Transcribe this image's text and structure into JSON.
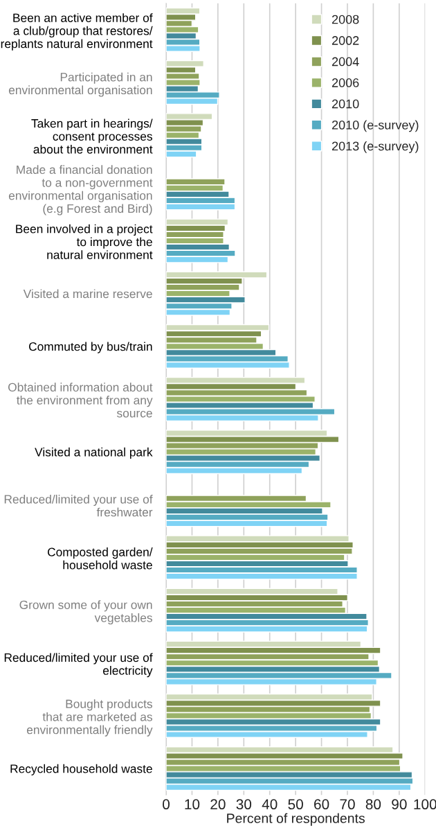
{
  "chart_data": {
    "type": "bar",
    "orientation": "horizontal",
    "xlabel": "Percent of respondents",
    "categories": [
      "Been an active member of\na club/group that restores/\nreplants natural environment",
      "Participated in an\nenvironmental organisation",
      "Taken part in hearings/\nconsent processes\nabout the environment",
      "Made a financial donation\nto a non-government\nenvironmental organisation\n(e.g Forest and Bird)",
      "Been involved in a project\nto improve the\nnatural environment",
      "Visited a marine reserve",
      "Commuted by bus/train",
      "Obtained information about\nthe environment from any\nsource",
      "Visited a national park",
      "Reduced/limited your use of\nfreshwater",
      "Composted garden/\nhousehold waste",
      "Grown some of your own\nvegetables",
      "Reduced/limited your use of\nelectricity",
      "Bought products\nthat are marketed as\nenvironmentally friendly",
      "Recycled household waste"
    ],
    "series": [
      {
        "name": "2008",
        "color": "#d0dbbb",
        "values": [
          13.0,
          14.5,
          17.8,
          null,
          23.9,
          38.9,
          39.7,
          53.6,
          62.2,
          null,
          70.6,
          66.3,
          75.2,
          79.6,
          87.6
        ]
      },
      {
        "name": "2002",
        "color": "#7f914e",
        "values": [
          11.4,
          11.4,
          14.3,
          null,
          22.8,
          29.4,
          36.8,
          50.1,
          66.7,
          null,
          72.2,
          70.1,
          82.8,
          82.8,
          91.4
        ]
      },
      {
        "name": "2004",
        "color": "#8fa25b",
        "values": [
          10.0,
          12.8,
          13.6,
          22.7,
          22.2,
          28.3,
          35.0,
          54.4,
          58.7,
          54.1,
          71.9,
          68.2,
          78.3,
          78.7,
          90.2
        ]
      },
      {
        "name": "2006",
        "color": "#9bb36a",
        "values": [
          12.5,
          13.1,
          12.7,
          22.0,
          22.2,
          24.6,
          37.5,
          57.5,
          57.8,
          63.6,
          68.9,
          69.3,
          81.9,
          79.2,
          90.5
        ]
      },
      {
        "name": "2010",
        "color": "#428a9c",
        "values": [
          11.6,
          12.4,
          13.8,
          24.3,
          24.4,
          30.5,
          42.4,
          56.8,
          59.4,
          60.4,
          70.3,
          77.5,
          82.4,
          82.8,
          95.0
        ]
      },
      {
        "name": "2010 (e-survey)",
        "color": "#55abc2",
        "values": [
          13.0,
          20.6,
          13.8,
          26.6,
          26.7,
          25.4,
          47.1,
          65.1,
          55.2,
          62.5,
          73.8,
          78.1,
          87.1,
          81.4,
          95.3
        ]
      },
      {
        "name": "2013 (e-survey)",
        "color": "#7fd3f5",
        "values": [
          13.1,
          19.9,
          11.7,
          26.6,
          23.9,
          24.7,
          47.6,
          58.8,
          52.5,
          62.2,
          73.8,
          77.7,
          81.3,
          77.8,
          94.5
        ]
      }
    ],
    "xlim": [
      0,
      100
    ],
    "xticks": [
      0,
      10,
      20,
      30,
      40,
      50,
      60,
      70,
      80,
      90,
      100
    ],
    "grid": "x",
    "legend": "top right"
  }
}
